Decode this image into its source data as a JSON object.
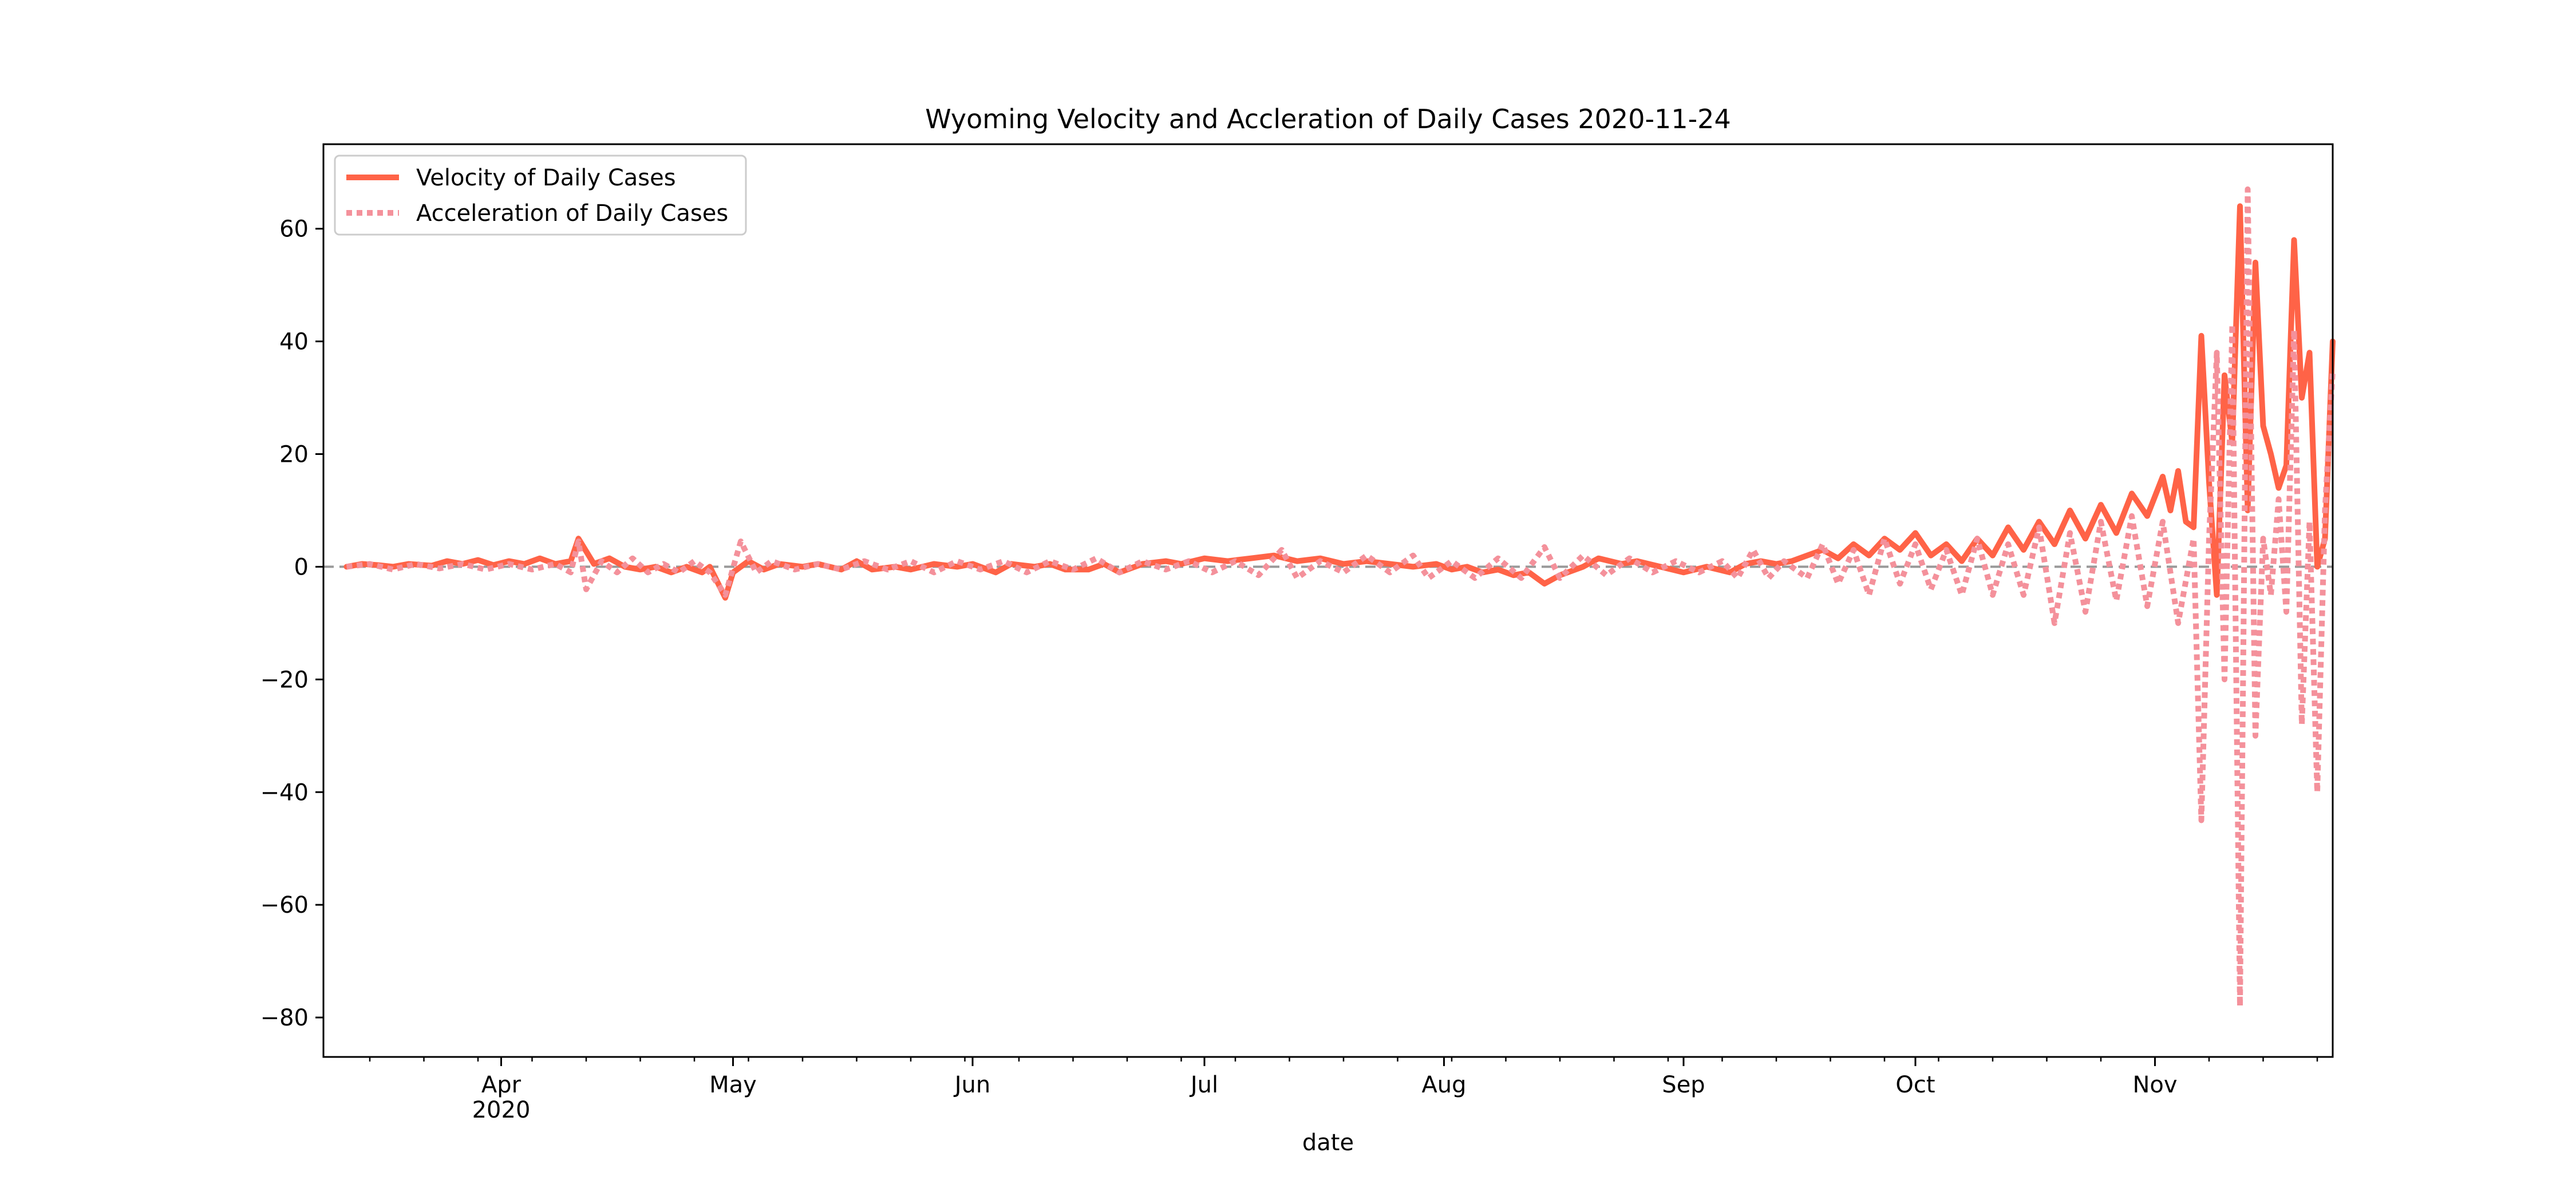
{
  "chart_data": {
    "type": "line",
    "title": "Wyoming Velocity and Accleration of Daily Cases 2020-11-24",
    "xlabel": "date",
    "ylabel": "",
    "x_range": [
      "2020-03-09",
      "2020-11-24"
    ],
    "ylim": [
      -87,
      75
    ],
    "yticks": [
      60,
      40,
      20,
      0,
      -20,
      -40,
      -60,
      -80
    ],
    "ytick_labels": [
      "60",
      "40",
      "20",
      "0",
      "−20",
      "−40",
      "−60",
      "−80"
    ],
    "xticks": [
      {
        "date": "2020-04-01",
        "label": "Apr",
        "sublabel": "2020"
      },
      {
        "date": "2020-05-01",
        "label": "May",
        "sublabel": ""
      },
      {
        "date": "2020-06-01",
        "label": "Jun",
        "sublabel": ""
      },
      {
        "date": "2020-07-01",
        "label": "Jul",
        "sublabel": ""
      },
      {
        "date": "2020-08-01",
        "label": "Aug",
        "sublabel": ""
      },
      {
        "date": "2020-09-01",
        "label": "Sep",
        "sublabel": ""
      },
      {
        "date": "2020-10-01",
        "label": "Oct",
        "sublabel": ""
      },
      {
        "date": "2020-11-01",
        "label": "Nov",
        "sublabel": ""
      }
    ],
    "zero_line": {
      "value": 0,
      "style": "dashed",
      "color": "#999999"
    },
    "grid": false,
    "legend_position": "top-left",
    "series": [
      {
        "name": "Velocity of Daily Cases",
        "color": "#ff6347",
        "style": "solid",
        "points": [
          [
            "2020-03-12",
            0
          ],
          [
            "2020-03-14",
            0.5
          ],
          [
            "2020-03-16",
            0.3
          ],
          [
            "2020-03-18",
            0
          ],
          [
            "2020-03-20",
            0.5
          ],
          [
            "2020-03-23",
            0.2
          ],
          [
            "2020-03-25",
            1
          ],
          [
            "2020-03-27",
            0.5
          ],
          [
            "2020-03-29",
            1.2
          ],
          [
            "2020-03-31",
            0.3
          ],
          [
            "2020-04-02",
            1
          ],
          [
            "2020-04-04",
            0.5
          ],
          [
            "2020-04-06",
            1.5
          ],
          [
            "2020-04-08",
            0.5
          ],
          [
            "2020-04-10",
            1
          ],
          [
            "2020-04-11",
            5
          ],
          [
            "2020-04-13",
            0.5
          ],
          [
            "2020-04-15",
            1.5
          ],
          [
            "2020-04-17",
            0
          ],
          [
            "2020-04-19",
            -0.5
          ],
          [
            "2020-04-21",
            0
          ],
          [
            "2020-04-23",
            -1
          ],
          [
            "2020-04-25",
            0
          ],
          [
            "2020-04-27",
            -1
          ],
          [
            "2020-04-28",
            0
          ],
          [
            "2020-04-30",
            -5.5
          ],
          [
            "2020-05-01",
            -1
          ],
          [
            "2020-05-03",
            1
          ],
          [
            "2020-05-05",
            -0.5
          ],
          [
            "2020-05-07",
            0.5
          ],
          [
            "2020-05-10",
            0
          ],
          [
            "2020-05-12",
            0.5
          ],
          [
            "2020-05-15",
            -0.5
          ],
          [
            "2020-05-17",
            1
          ],
          [
            "2020-05-19",
            -0.5
          ],
          [
            "2020-05-22",
            0
          ],
          [
            "2020-05-24",
            -0.5
          ],
          [
            "2020-05-27",
            0.5
          ],
          [
            "2020-05-30",
            0
          ],
          [
            "2020-06-01",
            0.5
          ],
          [
            "2020-06-04",
            -1
          ],
          [
            "2020-06-06",
            0.5
          ],
          [
            "2020-06-09",
            0
          ],
          [
            "2020-06-11",
            0.5
          ],
          [
            "2020-06-13",
            -0.5
          ],
          [
            "2020-06-16",
            -0.5
          ],
          [
            "2020-06-18",
            0.5
          ],
          [
            "2020-06-20",
            -1
          ],
          [
            "2020-06-23",
            0.5
          ],
          [
            "2020-06-26",
            1
          ],
          [
            "2020-06-28",
            0.5
          ],
          [
            "2020-07-01",
            1.5
          ],
          [
            "2020-07-04",
            1
          ],
          [
            "2020-07-07",
            1.5
          ],
          [
            "2020-07-10",
            2
          ],
          [
            "2020-07-13",
            1
          ],
          [
            "2020-07-16",
            1.5
          ],
          [
            "2020-07-19",
            0.5
          ],
          [
            "2020-07-22",
            1
          ],
          [
            "2020-07-25",
            0.5
          ],
          [
            "2020-07-28",
            0
          ],
          [
            "2020-07-31",
            0.5
          ],
          [
            "2020-08-02",
            -0.5
          ],
          [
            "2020-08-04",
            0
          ],
          [
            "2020-08-06",
            -1
          ],
          [
            "2020-08-08",
            -0.5
          ],
          [
            "2020-08-10",
            -1.5
          ],
          [
            "2020-08-12",
            -1
          ],
          [
            "2020-08-14",
            -3
          ],
          [
            "2020-08-16",
            -1.5
          ],
          [
            "2020-08-19",
            0
          ],
          [
            "2020-08-21",
            1.5
          ],
          [
            "2020-08-24",
            0.5
          ],
          [
            "2020-08-26",
            1
          ],
          [
            "2020-08-29",
            0
          ],
          [
            "2020-09-01",
            -1
          ],
          [
            "2020-09-04",
            0
          ],
          [
            "2020-09-07",
            -1
          ],
          [
            "2020-09-09",
            0.5
          ],
          [
            "2020-09-11",
            1
          ],
          [
            "2020-09-13",
            0.5
          ],
          [
            "2020-09-15",
            1
          ],
          [
            "2020-09-17",
            2
          ],
          [
            "2020-09-19",
            3
          ],
          [
            "2020-09-21",
            1.5
          ],
          [
            "2020-09-23",
            4
          ],
          [
            "2020-09-25",
            2
          ],
          [
            "2020-09-27",
            5
          ],
          [
            "2020-09-29",
            3
          ],
          [
            "2020-10-01",
            6
          ],
          [
            "2020-10-03",
            2
          ],
          [
            "2020-10-05",
            4
          ],
          [
            "2020-10-07",
            1
          ],
          [
            "2020-10-09",
            5
          ],
          [
            "2020-10-11",
            2
          ],
          [
            "2020-10-13",
            7
          ],
          [
            "2020-10-15",
            3
          ],
          [
            "2020-10-17",
            8
          ],
          [
            "2020-10-19",
            4
          ],
          [
            "2020-10-21",
            10
          ],
          [
            "2020-10-23",
            5
          ],
          [
            "2020-10-25",
            11
          ],
          [
            "2020-10-27",
            6
          ],
          [
            "2020-10-29",
            13
          ],
          [
            "2020-10-31",
            9
          ],
          [
            "2020-11-02",
            16
          ],
          [
            "2020-11-03",
            10
          ],
          [
            "2020-11-04",
            17
          ],
          [
            "2020-11-05",
            8
          ],
          [
            "2020-11-06",
            7
          ],
          [
            "2020-11-07",
            41
          ],
          [
            "2020-11-08",
            15
          ],
          [
            "2020-11-09",
            -5
          ],
          [
            "2020-11-10",
            34
          ],
          [
            "2020-11-11",
            22
          ],
          [
            "2020-11-12",
            64
          ],
          [
            "2020-11-13",
            10
          ],
          [
            "2020-11-14",
            54
          ],
          [
            "2020-11-15",
            25
          ],
          [
            "2020-11-16",
            20
          ],
          [
            "2020-11-17",
            14
          ],
          [
            "2020-11-18",
            18
          ],
          [
            "2020-11-19",
            58
          ],
          [
            "2020-11-20",
            30
          ],
          [
            "2020-11-21",
            38
          ],
          [
            "2020-11-22",
            0
          ],
          [
            "2020-11-23",
            5
          ],
          [
            "2020-11-24",
            40
          ]
        ]
      },
      {
        "name": "Acceleration of Daily Cases",
        "color": "#f4919b",
        "style": "dotted",
        "points": [
          [
            "2020-03-12",
            0
          ],
          [
            "2020-03-15",
            0.5
          ],
          [
            "2020-03-18",
            -0.5
          ],
          [
            "2020-03-21",
            0.5
          ],
          [
            "2020-03-24",
            -0.3
          ],
          [
            "2020-03-27",
            0.5
          ],
          [
            "2020-03-30",
            -0.5
          ],
          [
            "2020-04-02",
            0.5
          ],
          [
            "2020-04-05",
            -0.5
          ],
          [
            "2020-04-08",
            0.5
          ],
          [
            "2020-04-10",
            -1
          ],
          [
            "2020-04-11",
            4.5
          ],
          [
            "2020-04-12",
            -4
          ],
          [
            "2020-04-14",
            1
          ],
          [
            "2020-04-16",
            -1
          ],
          [
            "2020-04-18",
            1.5
          ],
          [
            "2020-04-20",
            -1
          ],
          [
            "2020-04-22",
            0.5
          ],
          [
            "2020-04-24",
            -1
          ],
          [
            "2020-04-26",
            1
          ],
          [
            "2020-04-28",
            -1
          ],
          [
            "2020-04-30",
            -5
          ],
          [
            "2020-05-02",
            4.5
          ],
          [
            "2020-05-04",
            -1
          ],
          [
            "2020-05-06",
            1
          ],
          [
            "2020-05-09",
            -0.5
          ],
          [
            "2020-05-12",
            0.5
          ],
          [
            "2020-05-15",
            -0.5
          ],
          [
            "2020-05-18",
            1
          ],
          [
            "2020-05-21",
            -0.5
          ],
          [
            "2020-05-24",
            1
          ],
          [
            "2020-05-27",
            -1
          ],
          [
            "2020-05-30",
            1
          ],
          [
            "2020-06-02",
            -0.5
          ],
          [
            "2020-06-05",
            1
          ],
          [
            "2020-06-08",
            -1
          ],
          [
            "2020-06-11",
            1
          ],
          [
            "2020-06-14",
            -0.5
          ],
          [
            "2020-06-17",
            1.5
          ],
          [
            "2020-06-20",
            -1
          ],
          [
            "2020-06-23",
            1
          ],
          [
            "2020-06-26",
            -0.5
          ],
          [
            "2020-06-29",
            1
          ],
          [
            "2020-07-02",
            -1
          ],
          [
            "2020-07-05",
            1
          ],
          [
            "2020-07-08",
            -1.5
          ],
          [
            "2020-07-11",
            3
          ],
          [
            "2020-07-13",
            -2
          ],
          [
            "2020-07-16",
            1
          ],
          [
            "2020-07-19",
            -1
          ],
          [
            "2020-07-22",
            2
          ],
          [
            "2020-07-25",
            -1
          ],
          [
            "2020-07-28",
            2
          ],
          [
            "2020-07-30",
            -2
          ],
          [
            "2020-08-02",
            1
          ],
          [
            "2020-08-05",
            -2
          ],
          [
            "2020-08-08",
            1.5
          ],
          [
            "2020-08-11",
            -2
          ],
          [
            "2020-08-14",
            3.5
          ],
          [
            "2020-08-16",
            -2
          ],
          [
            "2020-08-19",
            2
          ],
          [
            "2020-08-22",
            -1.5
          ],
          [
            "2020-08-25",
            1.5
          ],
          [
            "2020-08-28",
            -1
          ],
          [
            "2020-08-31",
            1
          ],
          [
            "2020-09-03",
            -1
          ],
          [
            "2020-09-06",
            1
          ],
          [
            "2020-09-08",
            -2
          ],
          [
            "2020-09-10",
            3
          ],
          [
            "2020-09-12",
            -2
          ],
          [
            "2020-09-14",
            1
          ],
          [
            "2020-09-17",
            -2
          ],
          [
            "2020-09-19",
            4
          ],
          [
            "2020-09-21",
            -3
          ],
          [
            "2020-09-23",
            3
          ],
          [
            "2020-09-25",
            -5
          ],
          [
            "2020-09-27",
            5
          ],
          [
            "2020-09-29",
            -3
          ],
          [
            "2020-10-01",
            4
          ],
          [
            "2020-10-03",
            -4
          ],
          [
            "2020-10-05",
            3
          ],
          [
            "2020-10-07",
            -5
          ],
          [
            "2020-10-09",
            5
          ],
          [
            "2020-10-11",
            -5
          ],
          [
            "2020-10-13",
            4
          ],
          [
            "2020-10-15",
            -5
          ],
          [
            "2020-10-17",
            7
          ],
          [
            "2020-10-19",
            -10
          ],
          [
            "2020-10-21",
            6
          ],
          [
            "2020-10-23",
            -8
          ],
          [
            "2020-10-25",
            8
          ],
          [
            "2020-10-27",
            -6
          ],
          [
            "2020-10-29",
            9
          ],
          [
            "2020-10-31",
            -7
          ],
          [
            "2020-11-02",
            8
          ],
          [
            "2020-11-04",
            -10
          ],
          [
            "2020-11-06",
            5
          ],
          [
            "2020-11-07",
            -45
          ],
          [
            "2020-11-08",
            5
          ],
          [
            "2020-11-09",
            38
          ],
          [
            "2020-11-10",
            -20
          ],
          [
            "2020-11-11",
            43
          ],
          [
            "2020-11-12",
            -78
          ],
          [
            "2020-11-13",
            67
          ],
          [
            "2020-11-14",
            -30
          ],
          [
            "2020-11-15",
            5
          ],
          [
            "2020-11-16",
            -5
          ],
          [
            "2020-11-17",
            12
          ],
          [
            "2020-11-18",
            -8
          ],
          [
            "2020-11-19",
            42
          ],
          [
            "2020-11-20",
            -28
          ],
          [
            "2020-11-21",
            8
          ],
          [
            "2020-11-22",
            -40
          ],
          [
            "2020-11-23",
            10
          ],
          [
            "2020-11-24",
            35
          ]
        ]
      }
    ]
  }
}
